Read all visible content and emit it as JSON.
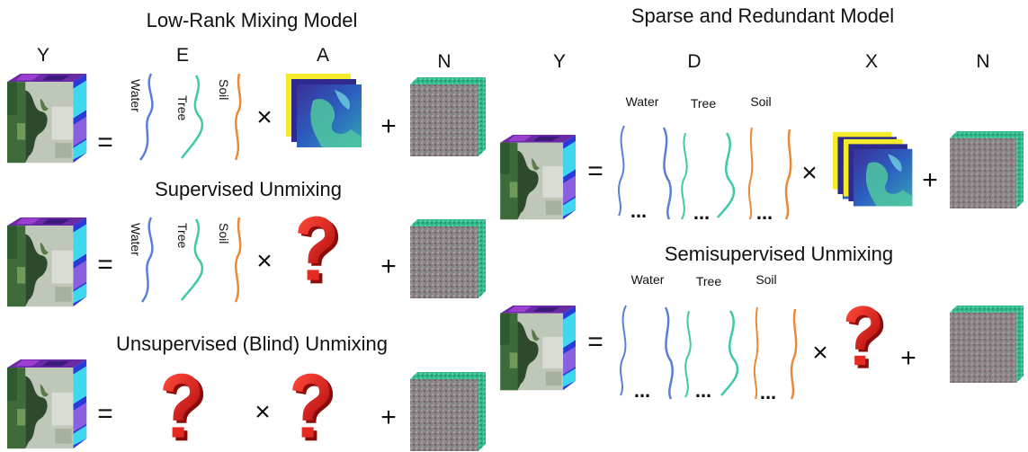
{
  "titles": {
    "low_rank": "Low-Rank Mixing Model",
    "supervised": "Supervised Unmixing",
    "unsupervised": "Unsupervised (Blind) Unmixing",
    "sparse": "Sparse and Redundant Model",
    "semisupervised": "Semisupervised Unmixing"
  },
  "variables": {
    "left": {
      "y": "Y",
      "e": "E",
      "a": "A",
      "n": "N"
    },
    "right": {
      "y": "Y",
      "d": "D",
      "x": "X",
      "n": "N"
    }
  },
  "operators": {
    "equals": "=",
    "times": "×",
    "plus": "+"
  },
  "endmember_labels": {
    "water": "Water",
    "tree": "Tree",
    "soil": "Soil"
  },
  "ellipsis": "...",
  "question_mark": "?",
  "colors": {
    "water": "#5b7fd6",
    "tree": "#3fc9a6",
    "soil": "#e88a3a",
    "question_red": "#d81b1b",
    "noise_front": "#8a7f82",
    "noise_side": "#35b88a"
  }
}
